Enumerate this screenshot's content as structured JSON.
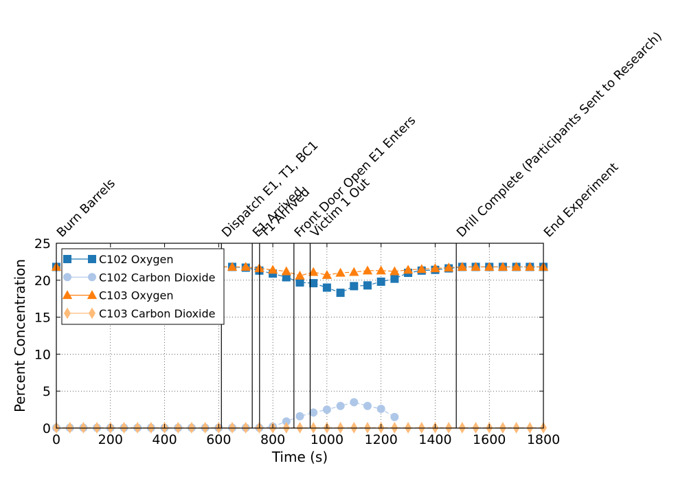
{
  "chart_data": {
    "type": "line",
    "xlabel": "Time (s)",
    "ylabel": "Percent Concentration",
    "xlim": [
      0,
      1800
    ],
    "ylim": [
      0,
      25
    ],
    "xticks": [
      0,
      200,
      400,
      600,
      800,
      1000,
      1200,
      1400,
      1600,
      1800
    ],
    "yticks": [
      0,
      5,
      10,
      15,
      20,
      25
    ],
    "grid": true,
    "legend_position": "top-left",
    "events": [
      {
        "t": 0,
        "label": "Burn Barrels"
      },
      {
        "t": 610,
        "label": "Dispatch E1, T1, BC1"
      },
      {
        "t": 724,
        "label": "E1 Arrived"
      },
      {
        "t": 751,
        "label": "T1 Arrived"
      },
      {
        "t": 878,
        "label": "Front Door Open E1 Enters"
      },
      {
        "t": 938,
        "label": "Victim 1 Out"
      },
      {
        "t": 1478,
        "label": "Drill Complete (Participants Sent to Research)"
      },
      {
        "t": 1800,
        "label": "End Experiment"
      }
    ],
    "series": [
      {
        "name": "C102 Oxygen",
        "color": "#1f77b4",
        "marker": "square",
        "x": [
          0,
          50,
          100,
          150,
          200,
          250,
          300,
          350,
          400,
          450,
          500,
          550,
          600,
          650,
          700,
          750,
          800,
          850,
          900,
          950,
          1000,
          1050,
          1100,
          1150,
          1200,
          1250,
          1300,
          1350,
          1400,
          1450,
          1500,
          1550,
          1600,
          1650,
          1700,
          1750,
          1800
        ],
        "y": [
          21.8,
          21.8,
          21.8,
          21.8,
          21.8,
          21.8,
          21.8,
          21.8,
          21.8,
          21.8,
          21.8,
          21.8,
          21.8,
          21.8,
          21.7,
          21.3,
          20.9,
          20.4,
          19.7,
          19.6,
          19.0,
          18.3,
          19.2,
          19.3,
          19.8,
          20.2,
          21.0,
          21.3,
          21.4,
          21.6,
          21.8,
          21.8,
          21.8,
          21.8,
          21.8,
          21.8,
          21.8
        ]
      },
      {
        "name": "C102 Carbon Dioxide",
        "color": "#aec7e8",
        "marker": "circle",
        "x": [
          0,
          50,
          100,
          150,
          200,
          250,
          300,
          350,
          400,
          450,
          500,
          550,
          600,
          650,
          700,
          750,
          800,
          850,
          900,
          950,
          1000,
          1050,
          1100,
          1150,
          1200,
          1250
        ],
        "y": [
          0.05,
          0.05,
          0.05,
          0.05,
          0.05,
          0.05,
          0.05,
          0.05,
          0.05,
          0.05,
          0.05,
          0.05,
          0.05,
          0.05,
          0.05,
          0.05,
          0.2,
          0.9,
          1.6,
          2.1,
          2.5,
          3.0,
          3.5,
          3.0,
          2.6,
          1.5
        ]
      },
      {
        "name": "C103 Oxygen",
        "color": "#ff7f0e",
        "marker": "triangle",
        "x": [
          0,
          50,
          100,
          150,
          200,
          250,
          300,
          350,
          400,
          450,
          500,
          550,
          600,
          650,
          700,
          750,
          800,
          850,
          900,
          950,
          1000,
          1050,
          1100,
          1150,
          1200,
          1250,
          1300,
          1350,
          1400,
          1450,
          1500,
          1550,
          1600,
          1650,
          1700,
          1750,
          1800
        ],
        "y": [
          21.8,
          21.8,
          21.8,
          21.8,
          21.8,
          21.8,
          21.8,
          21.8,
          21.8,
          21.8,
          21.8,
          21.8,
          21.8,
          21.8,
          21.8,
          21.6,
          21.4,
          21.2,
          20.6,
          21.1,
          20.7,
          21.0,
          21.1,
          21.3,
          21.3,
          21.2,
          21.4,
          21.5,
          21.6,
          21.7,
          21.8,
          21.8,
          21.8,
          21.8,
          21.8,
          21.8,
          21.8
        ]
      },
      {
        "name": "C103 Carbon Dioxide",
        "color": "#ffbb78",
        "marker": "diamond",
        "x": [
          0,
          50,
          100,
          150,
          200,
          250,
          300,
          350,
          400,
          450,
          500,
          550,
          600,
          650,
          700,
          750,
          800,
          850,
          900,
          950,
          1000,
          1050,
          1100,
          1150,
          1200,
          1250,
          1300,
          1350,
          1400,
          1450,
          1500,
          1550,
          1600,
          1650,
          1700,
          1750,
          1800
        ],
        "y": [
          0.05,
          0.05,
          0.05,
          0.05,
          0.05,
          0.05,
          0.05,
          0.05,
          0.05,
          0.05,
          0.05,
          0.05,
          0.05,
          0.05,
          0.05,
          0.05,
          0.05,
          0.05,
          0.05,
          0.05,
          0.05,
          0.05,
          0.05,
          0.05,
          0.05,
          0.05,
          0.05,
          0.05,
          0.05,
          0.05,
          0.05,
          0.05,
          0.05,
          0.05,
          0.05,
          0.05,
          0.05
        ]
      }
    ]
  }
}
